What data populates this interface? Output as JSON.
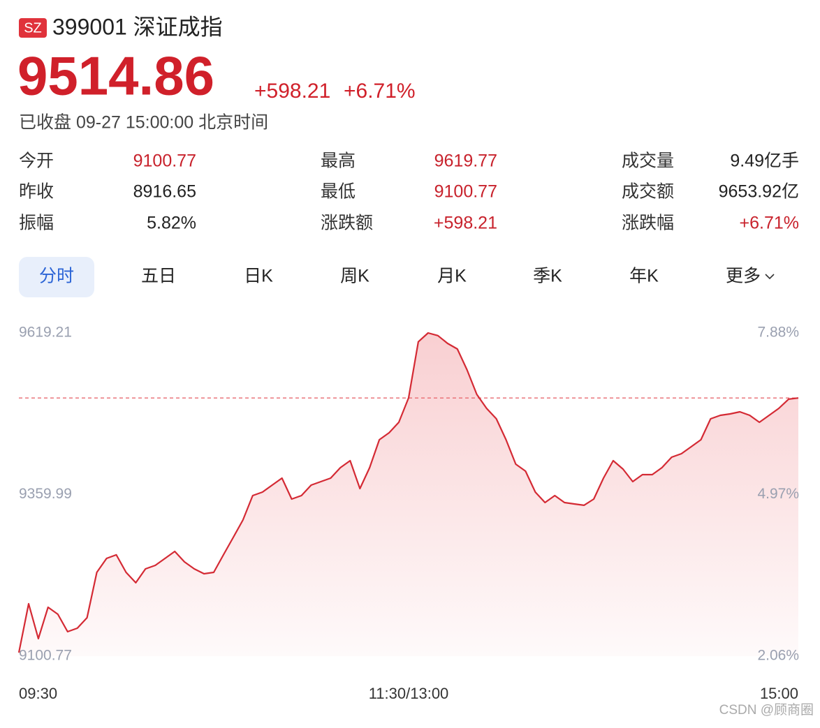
{
  "header": {
    "badge": "SZ",
    "code_name": "399001 深证成指",
    "price": "9514.86",
    "change": "+598.21",
    "change_pct": "+6.71%",
    "status": "已收盘 09-27 15:00:00 北京时间"
  },
  "stats": [
    [
      {
        "label": "今开",
        "value": "9100.77",
        "color": "#c8222c"
      },
      {
        "label": "最高",
        "value": "9619.77",
        "color": "#c8222c"
      },
      {
        "label": "成交量",
        "value": "9.49亿手",
        "color": "#222222"
      }
    ],
    [
      {
        "label": "昨收",
        "value": "8916.65",
        "color": "#222222"
      },
      {
        "label": "最低",
        "value": "9100.77",
        "color": "#c8222c"
      },
      {
        "label": "成交额",
        "value": "9653.92亿",
        "color": "#222222"
      }
    ],
    [
      {
        "label": "振幅",
        "value": "5.82%",
        "color": "#222222"
      },
      {
        "label": "涨跌额",
        "value": "+598.21",
        "color": "#c8222c"
      },
      {
        "label": "涨跌幅",
        "value": "+6.71%",
        "color": "#c8222c"
      }
    ]
  ],
  "tabs": [
    "分时",
    "五日",
    "日K",
    "周K",
    "月K",
    "季K",
    "年K",
    "更多"
  ],
  "watermark": "CSDN @顾商圈",
  "chart_data": {
    "type": "line",
    "color": "#d42a34",
    "grid": false,
    "x": [
      0,
      3,
      6,
      9,
      12,
      15,
      18,
      21,
      24,
      27,
      30,
      33,
      36,
      39,
      42,
      45,
      48,
      51,
      54,
      57,
      60,
      63,
      66,
      69,
      72,
      75,
      78,
      81,
      84,
      87,
      90,
      93,
      96,
      99,
      102,
      105,
      108,
      111,
      114,
      117,
      120,
      123,
      126,
      129,
      132,
      135,
      138,
      141,
      144,
      147,
      150,
      153,
      156,
      159,
      162,
      165,
      168,
      171,
      174,
      177,
      180,
      183,
      186,
      189,
      192,
      195,
      198,
      201,
      204,
      207,
      210,
      213,
      216,
      219,
      222,
      225,
      228,
      231,
      234,
      237,
      240
    ],
    "values": [
      9106.4,
      9184.8,
      9128.8,
      9179.2,
      9168.0,
      9140.0,
      9145.6,
      9162.4,
      9235.1,
      9257.5,
      9263.2,
      9235.1,
      9218.4,
      9240.7,
      9246.3,
      9257.5,
      9268.7,
      9251.9,
      9240.7,
      9232.9,
      9235.1,
      9263.2,
      9291.1,
      9319.1,
      9358.3,
      9363.9,
      9375.1,
      9386.3,
      9352.7,
      9358.3,
      9375.1,
      9380.7,
      9386.3,
      9403.1,
      9414.3,
      9369.5,
      9403.1,
      9447.9,
      9459.1,
      9475.9,
      9515.1,
      9605.0,
      9619.2,
      9615.0,
      9602.4,
      9593.5,
      9559.9,
      9520.7,
      9498.3,
      9481.5,
      9447.9,
      9408.7,
      9397.5,
      9363.9,
      9347.1,
      9358.3,
      9347.1,
      9344.9,
      9342.7,
      9352.7,
      9386.3,
      9414.3,
      9400.9,
      9380.7,
      9391.9,
      9391.9,
      9403.1,
      9419.9,
      9425.5,
      9436.7,
      9447.9,
      9481.5,
      9487.1,
      9489.3,
      9492.7,
      9487.1,
      9475.9,
      9487.1,
      9498.3,
      9512.9,
      9514.86
    ],
    "xlim": [
      0,
      240
    ],
    "xticks": [
      {
        "value": 0,
        "label": "09:30"
      },
      {
        "value": 120,
        "label": "11:30/13:00"
      },
      {
        "value": 240,
        "label": "15:00"
      }
    ],
    "ylim": [
      9100.77,
      9619.21
    ],
    "yticks": [
      9619.21,
      9359.99,
      9100.77
    ],
    "y2lim": [
      2.06,
      7.88
    ],
    "y2ticks": [
      {
        "value": 7.88,
        "label": "7.88%"
      },
      {
        "value": 4.97,
        "label": "4.97%"
      },
      {
        "value": 2.06,
        "label": "2.06%"
      }
    ]
  }
}
